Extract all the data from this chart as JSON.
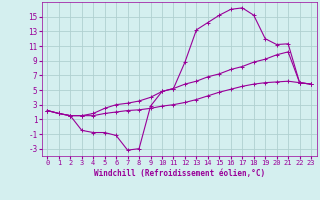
{
  "xlabel": "Windchill (Refroidissement éolien,°C)",
  "bg_color": "#d4efef",
  "grid_color": "#b0d0d0",
  "line_color": "#990099",
  "xlim": [
    -0.5,
    23.5
  ],
  "ylim": [
    -4,
    17
  ],
  "xticks": [
    0,
    1,
    2,
    3,
    4,
    5,
    6,
    7,
    8,
    9,
    10,
    11,
    12,
    13,
    14,
    15,
    16,
    17,
    18,
    19,
    20,
    21,
    22,
    23
  ],
  "yticks": [
    -3,
    -1,
    1,
    3,
    5,
    7,
    9,
    11,
    13,
    15
  ],
  "line1_x": [
    0,
    1,
    2,
    3,
    4,
    5,
    6,
    7,
    8,
    9,
    10,
    11,
    12,
    13,
    14,
    15,
    16,
    17,
    18,
    19,
    20,
    21,
    22,
    23
  ],
  "line1_y": [
    2.2,
    1.8,
    1.5,
    -0.5,
    -0.8,
    -0.8,
    -1.2,
    -3.2,
    -3.0,
    2.8,
    4.8,
    5.2,
    8.8,
    13.2,
    14.2,
    15.2,
    16.0,
    16.2,
    15.2,
    12.0,
    11.2,
    11.3,
    6.0,
    5.8
  ],
  "line2_x": [
    0,
    1,
    2,
    3,
    4,
    5,
    6,
    7,
    8,
    9,
    10,
    11,
    12,
    13,
    14,
    15,
    16,
    17,
    18,
    19,
    20,
    21,
    22,
    23
  ],
  "line2_y": [
    2.2,
    1.8,
    1.5,
    1.5,
    1.8,
    2.5,
    3.0,
    3.2,
    3.5,
    4.0,
    4.8,
    5.2,
    5.8,
    6.2,
    6.8,
    7.2,
    7.8,
    8.2,
    8.8,
    9.2,
    9.8,
    10.2,
    6.0,
    5.8
  ],
  "line3_x": [
    0,
    1,
    2,
    3,
    4,
    5,
    6,
    7,
    8,
    9,
    10,
    11,
    12,
    13,
    14,
    15,
    16,
    17,
    18,
    19,
    20,
    21,
    22,
    23
  ],
  "line3_y": [
    2.2,
    1.8,
    1.5,
    1.5,
    1.5,
    1.8,
    2.0,
    2.2,
    2.3,
    2.5,
    2.8,
    3.0,
    3.3,
    3.7,
    4.2,
    4.7,
    5.1,
    5.5,
    5.8,
    6.0,
    6.1,
    6.2,
    6.0,
    5.8
  ]
}
